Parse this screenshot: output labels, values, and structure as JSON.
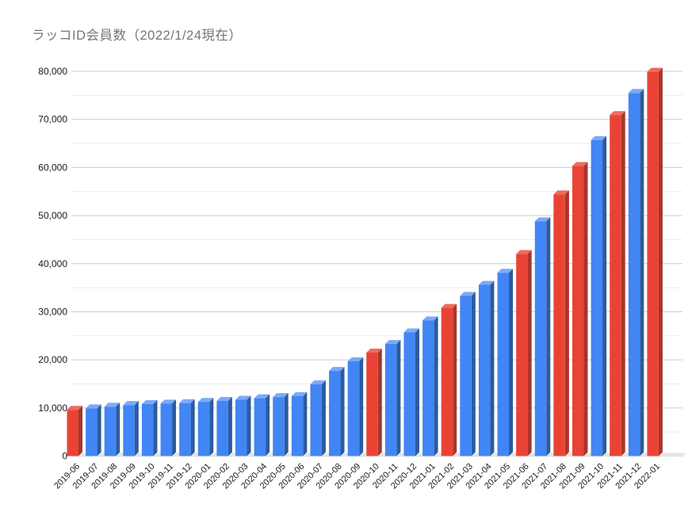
{
  "title": "ラッコID会員数（2022/1/24現在）",
  "colors": {
    "background": "#ffffff",
    "title_text": "#757575",
    "axis_text": "#1a1a1a",
    "grid_major": "#cccccc",
    "grid_minor": "#ededed",
    "floor": "#e4e4e4",
    "blue_front": "#4285f4",
    "blue_top": "#7baaf7",
    "blue_side": "#2a5c9e",
    "red_front": "#ea4335",
    "red_top": "#ef6a5e",
    "red_side": "#a6362b"
  },
  "chart_data": {
    "type": "bar",
    "style": "3d-column",
    "title": "ラッコID会員数（2022/1/24現在）",
    "xlabel": "",
    "ylabel": "",
    "legend": "none",
    "grid": true,
    "ylim": [
      0,
      80000
    ],
    "y_tick_interval": 10000,
    "y_minor_tick_interval": 5000,
    "y_tick_labels": [
      "0",
      "10,000",
      "20,000",
      "30,000",
      "40,000",
      "50,000",
      "60,000",
      "70,000",
      "80,000"
    ],
    "categories": [
      "2019-06",
      "2019-07",
      "2019-08",
      "2019-09",
      "2019-10",
      "2019-11",
      "2019-12",
      "2020-01",
      "2020-02",
      "2020-03",
      "2020-04",
      "2020-05",
      "2020-06",
      "2020-07",
      "2020-08",
      "2020-09",
      "2020-10",
      "2020-11",
      "2020-12",
      "2021-01",
      "2021-02",
      "2021-03",
      "2021-04",
      "2021-05",
      "2021-06",
      "2021-07",
      "2021-08",
      "2021-09",
      "2021-10",
      "2021-11",
      "2021-12",
      "2022-01"
    ],
    "values": [
      9600,
      9900,
      10250,
      10600,
      10800,
      10900,
      11000,
      11250,
      11450,
      11700,
      12000,
      12250,
      12450,
      14900,
      17700,
      19700,
      21500,
      23300,
      25700,
      28200,
      30800,
      33300,
      35600,
      38100,
      42000,
      48800,
      54400,
      60300,
      65700,
      70900,
      75500,
      79900
    ],
    "bar_color_keys": [
      "red",
      "blue",
      "blue",
      "blue",
      "blue",
      "blue",
      "blue",
      "blue",
      "blue",
      "blue",
      "blue",
      "blue",
      "blue",
      "blue",
      "blue",
      "blue",
      "red",
      "blue",
      "blue",
      "blue",
      "red",
      "blue",
      "blue",
      "blue",
      "red",
      "blue",
      "red",
      "red",
      "blue",
      "red",
      "blue",
      "red"
    ]
  }
}
